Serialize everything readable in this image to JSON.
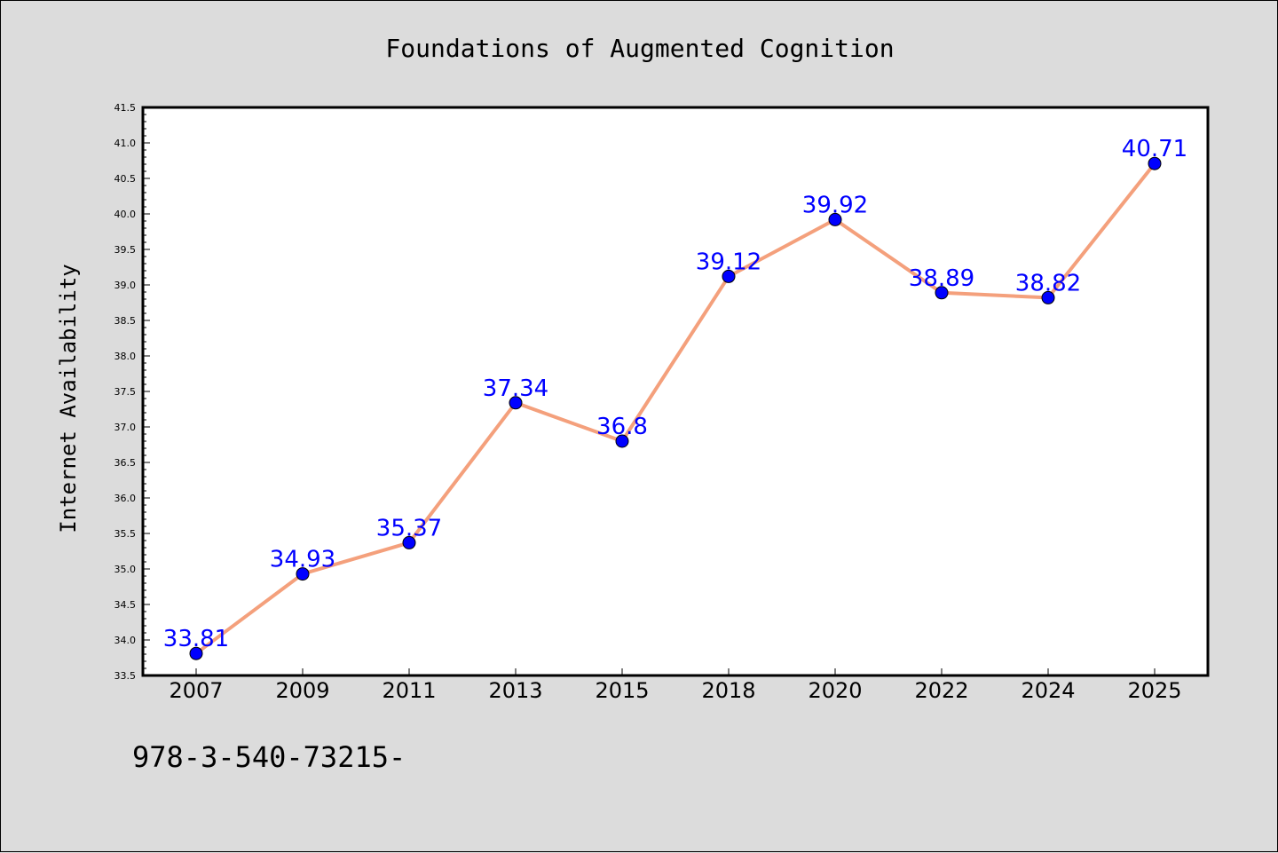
{
  "chart_data": {
    "type": "line",
    "title": "Foundations of Augmented Cognition",
    "xlabel": "",
    "ylabel": "Internet Availability",
    "categories": [
      "2007",
      "2009",
      "2011",
      "2013",
      "2015",
      "2018",
      "2020",
      "2022",
      "2024",
      "2025"
    ],
    "series": [
      {
        "values": [
          33.81,
          34.93,
          35.37,
          37.34,
          36.8,
          39.12,
          39.92,
          38.89,
          38.82,
          40.71
        ],
        "line_color": "#f4a07c",
        "marker_color": "#0000ff"
      }
    ],
    "data_labels": [
      "33.81",
      "34.93",
      "35.37",
      "37.34",
      "36.8",
      "39.12",
      "39.92",
      "38.89",
      "38.82",
      "40.71"
    ],
    "ylim": [
      33.5,
      41.5
    ],
    "yticks": [
      "33.5",
      "34.0",
      "34.5",
      "35.0",
      "35.5",
      "36.0",
      "36.5",
      "37.0",
      "37.5",
      "38.0",
      "38.5",
      "39.0",
      "39.5",
      "40.0",
      "40.5",
      "41.0",
      "41.5"
    ],
    "grid": false,
    "legend": "none"
  },
  "footer": {
    "text": "978-3-540-73215-"
  },
  "colors": {
    "background": "#dcdcdc",
    "plot_area": "#ffffff",
    "line": "#f4a07c",
    "marker": "#0000ff",
    "data_label": "#0000ff"
  }
}
